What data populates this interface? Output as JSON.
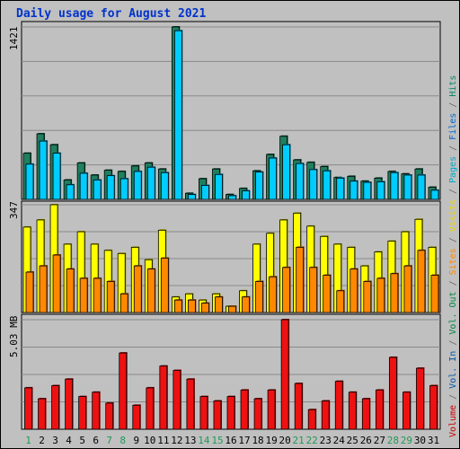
{
  "chart_data": {
    "type": "bar",
    "title": "Daily usage for August 2021",
    "categories": [
      "1",
      "2",
      "3",
      "4",
      "5",
      "6",
      "7",
      "8",
      "9",
      "10",
      "11",
      "12",
      "13",
      "14",
      "15",
      "16",
      "17",
      "18",
      "19",
      "20",
      "21",
      "22",
      "23",
      "24",
      "25",
      "26",
      "27",
      "28",
      "29",
      "30",
      "31"
    ],
    "weekend_days": [
      "1",
      "7",
      "8",
      "14",
      "15",
      "21",
      "22",
      "28",
      "29"
    ],
    "panels": [
      {
        "id": "top",
        "ymax_label": "1421",
        "ymax": 1421,
        "series": [
          {
            "name": "Hits",
            "color": "#1f7f5f",
            "values": [
              380,
              540,
              450,
              160,
              300,
              200,
              240,
              230,
              275,
              300,
              250,
              1421,
              50,
              170,
              250,
              40,
              90,
              235,
              370,
              520,
              325,
              305,
              270,
              180,
              190,
              150,
              175,
              230,
              210,
              250,
              100
            ]
          },
          {
            "name": "Files",
            "color": "#00ccff",
            "values": [
              290,
              480,
              380,
              120,
              215,
              160,
              195,
              170,
              230,
              265,
              220,
              1390,
              40,
              115,
              205,
              30,
              70,
              225,
              340,
              450,
              295,
              245,
              235,
              175,
              150,
              140,
              145,
              220,
              200,
              200,
              75
            ]
          }
        ]
      },
      {
        "id": "middle",
        "ymax_label": "347",
        "ymax": 347,
        "series": [
          {
            "name": "Visits",
            "color": "#ffff00",
            "values": [
              275,
              298,
              347,
              220,
              260,
              220,
              200,
              190,
              210,
              170,
              265,
              50,
              60,
              40,
              60,
              20,
              70,
              220,
              255,
              298,
              320,
              278,
              245,
              220,
              210,
              150,
              195,
              230,
              260,
              300,
              210
            ]
          },
          {
            "name": "Sites",
            "color": "#ff8800",
            "values": [
              130,
              150,
              185,
              140,
              110,
              110,
              100,
              60,
              150,
              140,
              175,
              40,
              40,
              30,
              50,
              20,
              50,
              100,
              115,
              145,
              210,
              145,
              120,
              70,
              140,
              100,
              110,
              125,
              150,
              200,
              120
            ]
          }
        ]
      },
      {
        "id": "bottom",
        "ymax_label": "5.03 MB",
        "ymax": 5.03,
        "series": [
          {
            "name": "Volume",
            "color": "#ee1111",
            "values": [
              1.9,
              1.4,
              2.0,
              2.3,
              1.5,
              1.7,
              1.2,
              3.5,
              1.1,
              1.9,
              2.9,
              2.7,
              2.3,
              1.5,
              1.3,
              1.5,
              1.8,
              1.4,
              1.8,
              5.03,
              2.1,
              0.9,
              1.3,
              2.2,
              1.7,
              1.4,
              1.8,
              3.3,
              1.7,
              2.8,
              2.0
            ]
          }
        ]
      }
    ],
    "right_legend": [
      {
        "text": "Volume",
        "color": "#cc0000"
      },
      {
        "text": " / ",
        "color": "#666666"
      },
      {
        "text": "Vol. In",
        "color": "#0055aa"
      },
      {
        "text": " / ",
        "color": "#666666"
      },
      {
        "text": "Vol. Out",
        "color": "#008844"
      },
      {
        "text": " / ",
        "color": "#666666"
      },
      {
        "text": "Sites",
        "color": "#ff8800"
      },
      {
        "text": " / ",
        "color": "#666666"
      },
      {
        "text": "Visits",
        "color": "#e8d800"
      },
      {
        "text": " / ",
        "color": "#666666"
      },
      {
        "text": "Pages",
        "color": "#00aacc"
      },
      {
        "text": " / ",
        "color": "#666666"
      },
      {
        "text": "Files",
        "color": "#0066cc"
      },
      {
        "text": " / ",
        "color": "#666666"
      },
      {
        "text": "Hits",
        "color": "#008866"
      }
    ],
    "grid": true
  }
}
